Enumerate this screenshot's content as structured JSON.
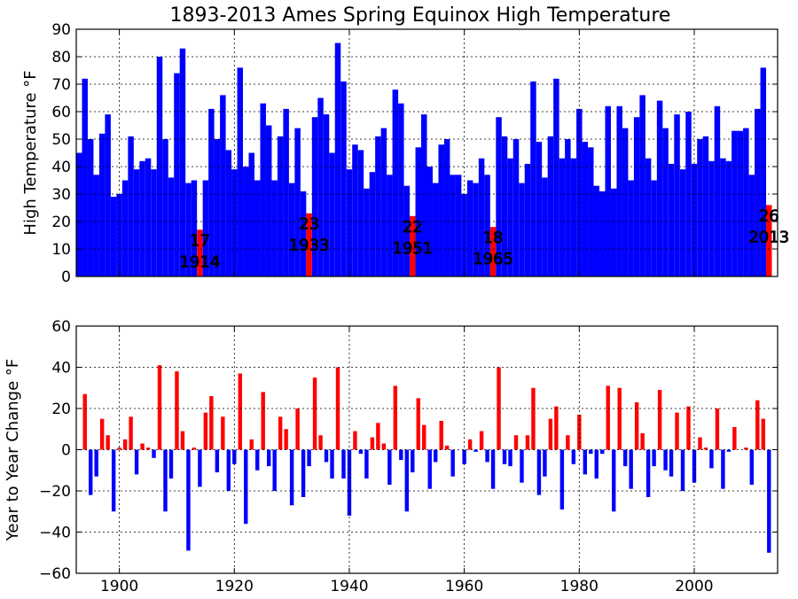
{
  "title": "1893-2013 Ames Spring Equinox High Temperature",
  "colors": {
    "cold": "#0000ff",
    "warm": "#ff0000",
    "grid": "#000000"
  },
  "chart_data": [
    {
      "type": "bar",
      "ylabel": "High Temperature °F",
      "xlim": [
        1892.5,
        2014.5
      ],
      "ylim": [
        0,
        90
      ],
      "yticks": [
        0,
        10,
        20,
        30,
        40,
        50,
        60,
        70,
        80,
        90
      ],
      "xticks": [
        1900,
        1920,
        1940,
        1960,
        1980,
        2000
      ],
      "x_tick_labels_shown": false,
      "grid": true,
      "start_year": 1893,
      "values": [
        45,
        72,
        50,
        37,
        52,
        59,
        29,
        30,
        35,
        51,
        39,
        42,
        43,
        39,
        80,
        50,
        36,
        74,
        83,
        34,
        35,
        17,
        35,
        61,
        50,
        66,
        46,
        39,
        76,
        40,
        45,
        35,
        63,
        55,
        35,
        51,
        61,
        34,
        54,
        31,
        23,
        58,
        65,
        59,
        45,
        85,
        71,
        39,
        48,
        46,
        32,
        38,
        51,
        54,
        37,
        68,
        63,
        33,
        22,
        47,
        59,
        40,
        34,
        48,
        50,
        37,
        37,
        30,
        35,
        34,
        43,
        37,
        18,
        58,
        51,
        43,
        50,
        34,
        41,
        71,
        49,
        36,
        51,
        72,
        43,
        50,
        43,
        61,
        49,
        47,
        33,
        31,
        62,
        32,
        62,
        54,
        35,
        58,
        66,
        43,
        35,
        64,
        54,
        41,
        59,
        39,
        60,
        41,
        50,
        51,
        42,
        62,
        43,
        42,
        53,
        53,
        54,
        37,
        61,
        76,
        26
      ],
      "highlighted": [
        {
          "year": 1914,
          "value": 17,
          "value_label": "17",
          "year_label": "1914"
        },
        {
          "year": 1933,
          "value": 23,
          "value_label": "23",
          "year_label": "1933"
        },
        {
          "year": 1951,
          "value": 22,
          "value_label": "22",
          "year_label": "1951"
        },
        {
          "year": 1965,
          "value": 18,
          "value_label": "18",
          "year_label": "1965"
        },
        {
          "year": 2013,
          "value": 26,
          "value_label": "26",
          "year_label": "2013"
        }
      ]
    },
    {
      "type": "bar",
      "ylabel": "Year to Year Change °F",
      "xlim": [
        1892.5,
        2014.5
      ],
      "ylim": [
        -60,
        60
      ],
      "yticks": [
        -60,
        -40,
        -20,
        0,
        20,
        40,
        60
      ],
      "xticks": [
        1900,
        1920,
        1940,
        1960,
        1980,
        2000
      ],
      "grid": true,
      "color_rule": "positive red, negative blue",
      "start_year": 1894,
      "values": [
        27,
        -22,
        -13,
        15,
        7,
        -30,
        1,
        5,
        16,
        -12,
        3,
        1,
        -4,
        41,
        -30,
        -14,
        38,
        9,
        -49,
        1,
        -18,
        18,
        26,
        -11,
        16,
        -20,
        -7,
        37,
        -36,
        5,
        -10,
        28,
        -8,
        -20,
        16,
        10,
        -27,
        20,
        -23,
        -8,
        35,
        7,
        -6,
        -14,
        40,
        -14,
        -32,
        9,
        -2,
        -14,
        6,
        13,
        3,
        -17,
        31,
        -5,
        -30,
        -11,
        25,
        12,
        -19,
        -6,
        14,
        2,
        -13,
        0,
        -7,
        5,
        -1,
        9,
        -6,
        -19,
        40,
        -7,
        -8,
        7,
        -16,
        7,
        30,
        -22,
        -13,
        15,
        21,
        -29,
        7,
        -7,
        17,
        -12,
        -2,
        -14,
        -2,
        31,
        -30,
        30,
        -8,
        -19,
        23,
        8,
        -23,
        -8,
        29,
        -10,
        -13,
        18,
        -20,
        21,
        -16,
        6,
        1,
        -9,
        20,
        -19,
        -1,
        11,
        0,
        1,
        -17,
        24,
        15,
        -50
      ]
    }
  ]
}
